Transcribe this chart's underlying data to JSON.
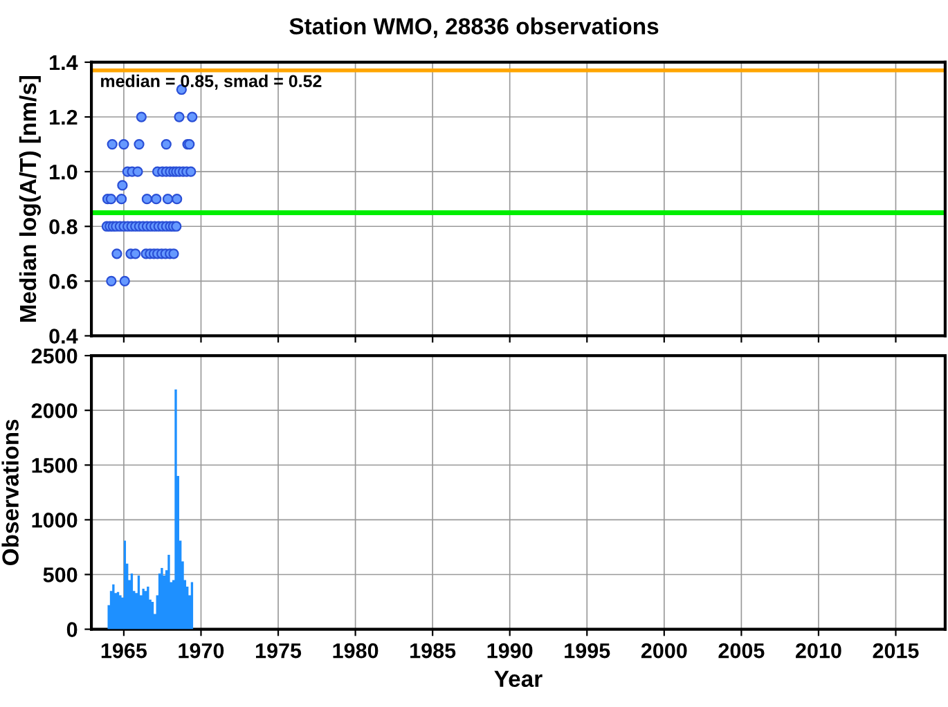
{
  "chart_data": [
    {
      "type": "scatter",
      "title": "Station WMO, 28836 observations",
      "ylabel": "Median log(A/T) [nm/s]",
      "xlim": [
        1962.9,
        2018.2
      ],
      "xticks": [
        1965,
        1970,
        1975,
        1980,
        1985,
        1990,
        1995,
        2000,
        2005,
        2010,
        2015
      ],
      "ylim": [
        0.4,
        1.4
      ],
      "yticks": [
        0.4,
        0.6,
        0.8,
        {
          "value": 1,
          "label": "1.0"
        },
        1.2,
        1.4
      ],
      "grid": true,
      "tick_labels": "y",
      "marker": "circle",
      "series": [
        {
          "color": "#6699ff",
          "x": [
            1968.74,
            1966.14,
            1968.59,
            1969.43,
            1964.25,
            1965.0,
            1965.99,
            1967.75,
            1969.13,
            1969.25,
            1965.24,
            1965.54,
            1965.9,
            1967.18,
            1967.5,
            1967.75,
            1968.0,
            1968.22,
            1968.4,
            1968.6,
            1968.84,
            1969.07,
            1969.34,
            1964.91,
            1963.95,
            1964.17,
            1964.85,
            1966.5,
            1967.1,
            1967.85,
            1968.44,
            1963.9,
            1964.1,
            1964.3,
            1964.5,
            1964.75,
            1965.0,
            1965.25,
            1965.5,
            1965.75,
            1966.0,
            1966.25,
            1966.5,
            1966.75,
            1967.0,
            1967.25,
            1967.5,
            1967.75,
            1968.0,
            1968.2,
            1968.4,
            1964.55,
            1965.45,
            1965.75,
            1966.44,
            1966.7,
            1966.95,
            1967.18,
            1967.45,
            1967.7,
            1967.99,
            1968.23,
            1964.19,
            1965.06
          ],
          "values": [
            1.3,
            1.2,
            1.2,
            1.2,
            1.1,
            1.1,
            1.1,
            1.1,
            1.1,
            1.1,
            1.0,
            1.0,
            1.0,
            1.0,
            1.0,
            1.0,
            1.0,
            1.0,
            1.0,
            1.0,
            1.0,
            1.0,
            1.0,
            0.95,
            0.9,
            0.9,
            0.9,
            0.9,
            0.9,
            0.9,
            0.9,
            0.8,
            0.8,
            0.8,
            0.8,
            0.8,
            0.8,
            0.8,
            0.8,
            0.8,
            0.8,
            0.8,
            0.8,
            0.8,
            0.8,
            0.8,
            0.8,
            0.8,
            0.8,
            0.8,
            0.8,
            0.7,
            0.7,
            0.7,
            0.7,
            0.7,
            0.7,
            0.7,
            0.7,
            0.7,
            0.7,
            0.7,
            0.6,
            0.6
          ]
        }
      ],
      "ref_lines": [
        {
          "axis": "y",
          "value": 1.37,
          "color": "#ffa500"
        },
        {
          "axis": "y",
          "value": 0.85,
          "color": "#00ee00"
        }
      ],
      "annotations": [
        "median = 0.85, smad = 0.52"
      ]
    },
    {
      "type": "histogram",
      "xlabel": "Year",
      "ylabel": "Observations",
      "xlim": [
        1962.9,
        2018.2
      ],
      "xticks": [
        1965,
        1970,
        1975,
        1980,
        1985,
        1990,
        1995,
        2000,
        2005,
        2010,
        2015
      ],
      "ylim": [
        0,
        2500
      ],
      "yticks": [
        0,
        500,
        1000,
        1500,
        2000,
        2500
      ],
      "grid": true,
      "color": "#1e90ff",
      "bins": [
        1963.95,
        1964.1,
        1964.25,
        1964.4,
        1964.55,
        1964.7,
        1964.85,
        1965.0,
        1965.14,
        1965.29,
        1965.44,
        1965.59,
        1965.74,
        1965.89,
        1966.04,
        1966.19,
        1966.34,
        1966.49,
        1966.64,
        1966.79,
        1966.94,
        1967.09,
        1967.24,
        1967.39,
        1967.54,
        1967.69,
        1967.84,
        1967.99,
        1968.14,
        1968.29,
        1968.44,
        1968.59,
        1968.74,
        1968.89,
        1969.04,
        1969.19,
        1969.34,
        1969.49
      ],
      "values": [
        220,
        350,
        410,
        330,
        340,
        310,
        290,
        810,
        600,
        450,
        510,
        350,
        330,
        490,
        310,
        370,
        350,
        390,
        270,
        250,
        140,
        310,
        510,
        560,
        490,
        540,
        680,
        430,
        450,
        2190,
        1400,
        810,
        620,
        450,
        390,
        310,
        430
      ]
    }
  ]
}
